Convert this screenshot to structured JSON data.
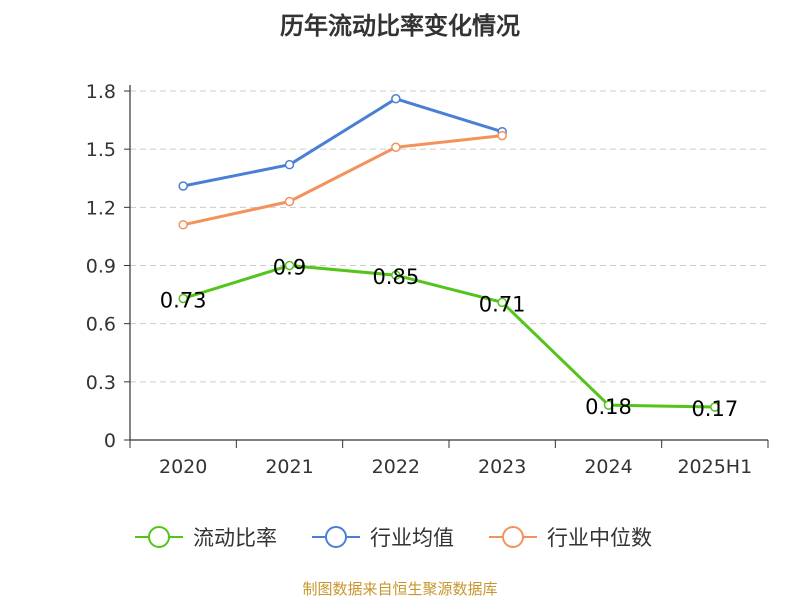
{
  "chart_data": {
    "type": "line",
    "title": "历年流动比率变化情况",
    "categories": [
      "2020",
      "2021",
      "2022",
      "2023",
      "2024",
      "2025H1"
    ],
    "ylim": [
      0,
      1.8
    ],
    "yticks": [
      "0",
      "0.3",
      "0.6",
      "0.9",
      "1.2",
      "1.5",
      "1.8"
    ],
    "grid": true,
    "legend_position": "bottom",
    "series": [
      {
        "name": "流动比率",
        "color": "#52c41a",
        "values": [
          0.73,
          0.9,
          0.85,
          0.71,
          0.18,
          0.17
        ],
        "labels": [
          "0.73",
          "0.9",
          "0.85",
          "0.71",
          "0.18",
          "0.17"
        ]
      },
      {
        "name": "行业均值",
        "color": "#4a7fd6",
        "values": [
          1.31,
          1.42,
          1.76,
          1.59,
          null,
          null
        ]
      },
      {
        "name": "行业中位数",
        "color": "#f4925c",
        "values": [
          1.11,
          1.23,
          1.51,
          1.57,
          null,
          null
        ]
      }
    ]
  },
  "source": "制图数据来自恒生聚源数据库"
}
